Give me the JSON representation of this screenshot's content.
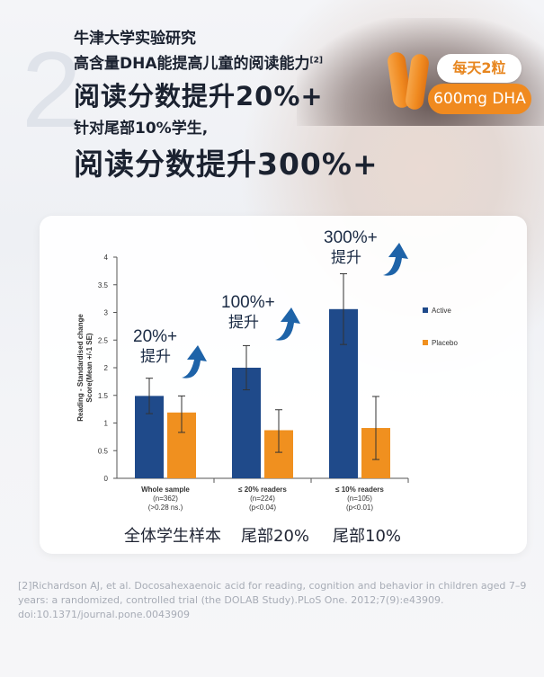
{
  "headline": {
    "big_number": "2",
    "line1": "牛津大学实验研究",
    "line2": "高含量DHA能提高儿童的阅读能力",
    "line2_sup": "[2]",
    "line3": "阅读分数提升20%+",
    "line4": "针对尾部10%学生,",
    "line5": "阅读分数提升300%+"
  },
  "badge": {
    "top": "每天2粒",
    "bottom": "600mg DHA"
  },
  "colors": {
    "active": "#1f4a8a",
    "placebo": "#f0901f",
    "accent_orange": "#f08a1f",
    "arrow": "#1e63a8"
  },
  "chart_data": {
    "type": "bar",
    "ylabel": "Reading - Standardised change Score(Mean +/-1 SE)",
    "ylim": [
      0,
      4
    ],
    "yticks": [
      "0",
      "0.5",
      "1",
      "1.5",
      "2",
      "2.5",
      "3",
      "3.5",
      "4"
    ],
    "categories": [
      {
        "line1": "Whole sample",
        "line2": "(n=362)",
        "line3": "(>0.28 ns.)"
      },
      {
        "line1": "≤ 20% readers",
        "line2": "(n=224)",
        "line3": "(p<0.04)"
      },
      {
        "line1": "≤ 10% readers",
        "line2": "(n=105)",
        "line3": "(p<0.01)"
      }
    ],
    "series": [
      {
        "name": "Active",
        "values": [
          1.49,
          2.0,
          3.06
        ],
        "err_low": [
          1.17,
          1.6,
          2.42
        ],
        "err_high": [
          1.81,
          2.4,
          3.7
        ]
      },
      {
        "name": "Placebo",
        "values": [
          1.19,
          0.87,
          0.91
        ],
        "err_low": [
          0.83,
          0.47,
          0.34
        ],
        "err_high": [
          1.49,
          1.24,
          1.48
        ]
      }
    ],
    "annotations": [
      {
        "pct": "20%+",
        "text": "提升"
      },
      {
        "pct": "100%+",
        "text": "提升"
      },
      {
        "pct": "300%+",
        "text": "提升"
      }
    ],
    "legend": "right"
  },
  "captions": [
    "全体学生样本",
    "尾部20%",
    "尾部10%"
  ],
  "reference": "[2]Richardson AJ, et al. Docosahexaenoic acid for reading, cognition and behavior in children aged 7–9 years: a randomized, controlled trial (the DOLAB Study).PLoS One. 2012;7(9):e43909. doi:10.1371/journal.pone.0043909"
}
